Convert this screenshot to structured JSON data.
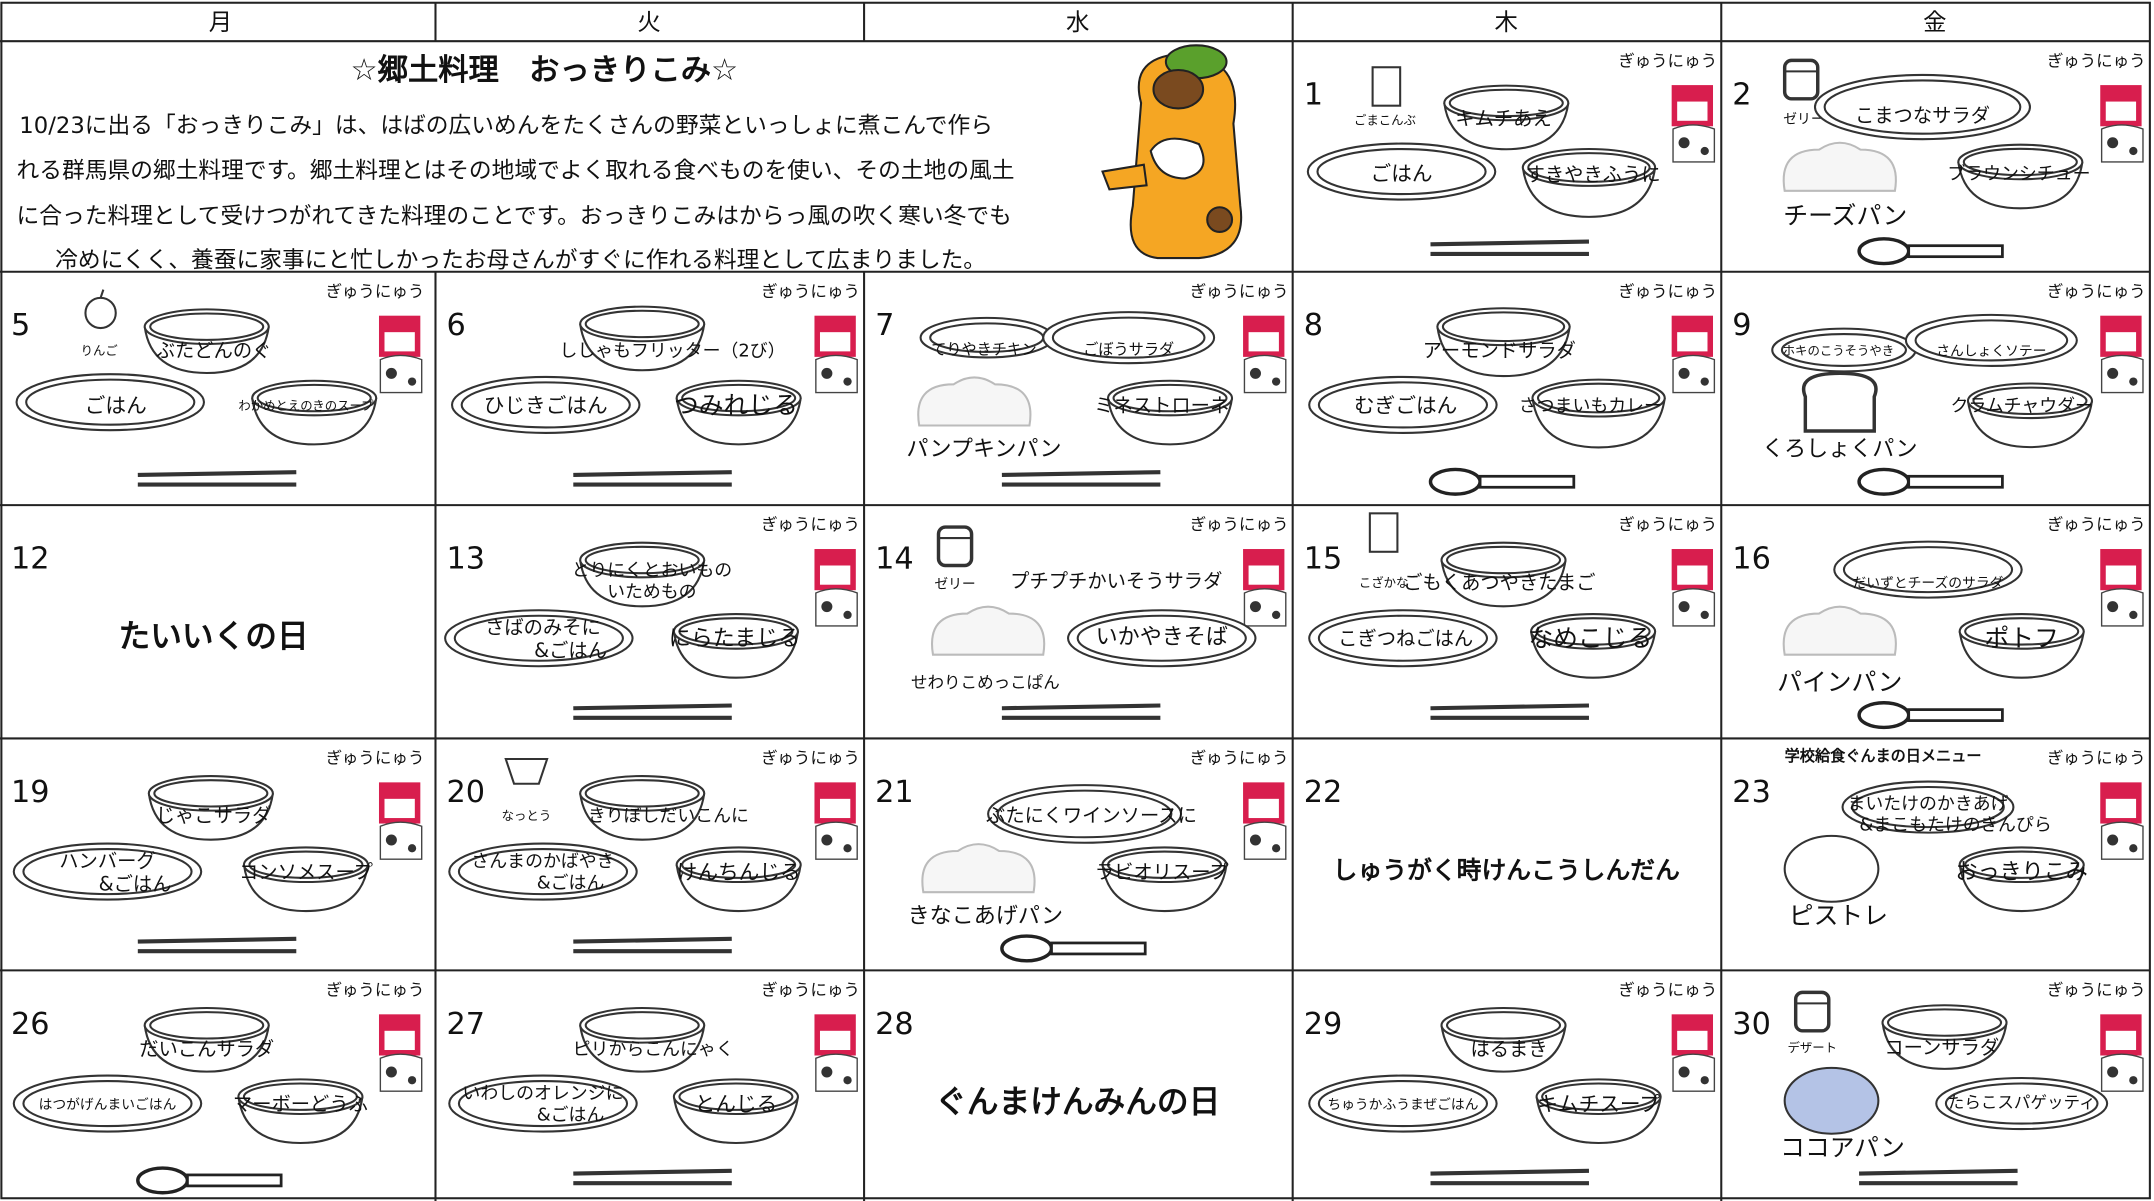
{
  "header": {
    "weekdays": [
      "月",
      "火",
      "水",
      "木",
      "金"
    ]
  },
  "intro": {
    "title": "☆郷土料理　おっきりこみ☆",
    "lines": [
      "10/23に出る「おっきりこみ」は、はばの広いめんをたくさんの野菜といっしょに煮こんで作ら",
      "れる群馬県の郷土料理です。郷土料理とはその地域でよく取れる食べものを使い、その土地の風土",
      "に合った料理として受けつがれてきた料理のことです。おっきりこみはからっ風の吹く寒い冬でも",
      "冷めにくく、養蚕に家事にと忙しかったお母さんがすぐに作れる料理として広まりました。"
    ]
  },
  "days": [
    {
      "date": 1,
      "milk": "ぎゅうにゅう",
      "items": [
        [
          "ごまこんぶ"
        ],
        [
          "キムチあえ"
        ],
        [
          "ごはん"
        ],
        [
          "すきやきふうに"
        ]
      ]
    },
    {
      "date": 2,
      "milk": "ぎゅうにゅう",
      "items": [
        [
          "ゼリー"
        ],
        [
          "こまつなサラダ"
        ],
        [
          "ブラウンシチュー"
        ],
        [
          "チーズパン"
        ]
      ]
    },
    {
      "date": 5,
      "milk": "ぎゅうにゅう",
      "items": [
        [
          "りんご"
        ],
        [
          "ぶたどんのぐ"
        ],
        [
          "ごはん"
        ],
        [
          "わかめとえのきのスープ"
        ]
      ]
    },
    {
      "date": 6,
      "milk": "ぎゅうにゅう",
      "items": [
        [
          "ししゃもフリッター（2び）"
        ],
        [
          "ひじきごはん"
        ],
        [
          "つみれじる"
        ]
      ]
    },
    {
      "date": 7,
      "milk": "ぎゅうにゅう",
      "items": [
        [
          "てりやきチキン"
        ],
        [
          "ごぼうサラダ"
        ],
        [
          "ミネストローネ"
        ],
        [
          "パンプキンパン"
        ]
      ]
    },
    {
      "date": 8,
      "milk": "ぎゅうにゅう",
      "items": [
        [
          "アーモンドサラダ"
        ],
        [
          "むぎごはん"
        ],
        [
          "さつまいもカレー"
        ]
      ]
    },
    {
      "date": 9,
      "milk": "ぎゅうにゅう",
      "items": [
        [
          "ホキのこうそうやき"
        ],
        [
          "さんしょくソテー"
        ],
        [
          "クラムチャウダー"
        ],
        [
          "くろしょくパン"
        ]
      ]
    },
    {
      "date": 12,
      "event": "たいいくの日"
    },
    {
      "date": 13,
      "milk": "ぎゅうにゅう",
      "items": [
        [
          "とりにくとおいもの",
          "いためもの"
        ],
        [
          "さばのみそに",
          "&ごはん"
        ],
        [
          "にらたまじる"
        ]
      ]
    },
    {
      "date": 14,
      "milk": "ぎゅうにゅう",
      "items": [
        [
          "ゼリー"
        ],
        [
          "プチプチかいそうサラダ"
        ],
        [
          "いかやきそば"
        ],
        [
          "せわりこめっこぱん"
        ]
      ]
    },
    {
      "date": 15,
      "milk": "ぎゅうにゅう",
      "items": [
        [
          "こざかな"
        ],
        [
          "ごもくあつやきたまご"
        ],
        [
          "こぎつねごはん"
        ],
        [
          "なめこじる"
        ]
      ]
    },
    {
      "date": 16,
      "milk": "ぎゅうにゅう",
      "items": [
        [
          "だいずとチーズのサラダ"
        ],
        [
          "ポトフ"
        ],
        [
          "パインパン"
        ]
      ]
    },
    {
      "date": 19,
      "milk": "ぎゅうにゅう",
      "items": [
        [
          "じゃこサラダ"
        ],
        [
          "ハンバーグ",
          "&ごはん"
        ],
        [
          "コンソメスープ"
        ]
      ]
    },
    {
      "date": 20,
      "milk": "ぎゅうにゅう",
      "items": [
        [
          "なっとう"
        ],
        [
          "きりぼしだいこんに"
        ],
        [
          "さんまのかばやき",
          "&ごはん"
        ],
        [
          "けんちんじる"
        ]
      ]
    },
    {
      "date": 21,
      "milk": "ぎゅうにゅう",
      "items": [
        [
          "ぶたにくワインソースに"
        ],
        [
          "ラビオリスープ"
        ],
        [
          "きなこあげパン"
        ]
      ]
    },
    {
      "date": 22,
      "event": "しゅうがく時けんこうしんだん"
    },
    {
      "date": 23,
      "milk": "ぎゅうにゅう",
      "note": "学校給食ぐんまの日メニュー",
      "items": [
        [
          "まいたけのかきあげ",
          "&まこもたけのきんぴら"
        ],
        [
          "おっきりこみ"
        ],
        [
          "ピストレ"
        ]
      ]
    },
    {
      "date": 26,
      "milk": "ぎゅうにゅう",
      "items": [
        [
          "だいこんサラダ"
        ],
        [
          "はつがげんまいごはん"
        ],
        [
          "マーボーどうふ"
        ]
      ]
    },
    {
      "date": 27,
      "milk": "ぎゅうにゅう",
      "items": [
        [
          "ピリからこんにゃく"
        ],
        [
          "いわしのオレンジに",
          "&ごはん"
        ],
        [
          "とんじる"
        ]
      ]
    },
    {
      "date": 28,
      "event": "ぐんまけんみんの日"
    },
    {
      "date": 29,
      "milk": "ぎゅうにゅう",
      "items": [
        [
          "はるまき"
        ],
        [
          "ちゅうかふうまぜごはん"
        ],
        [
          "キムチスープ"
        ]
      ]
    },
    {
      "date": 30,
      "milk": "ぎゅうにゅう",
      "items": [
        [
          "デザート"
        ],
        [
          "コーンサラダ"
        ],
        [
          "たらこスパゲッティ"
        ],
        [
          "ココアパン"
        ]
      ]
    }
  ]
}
